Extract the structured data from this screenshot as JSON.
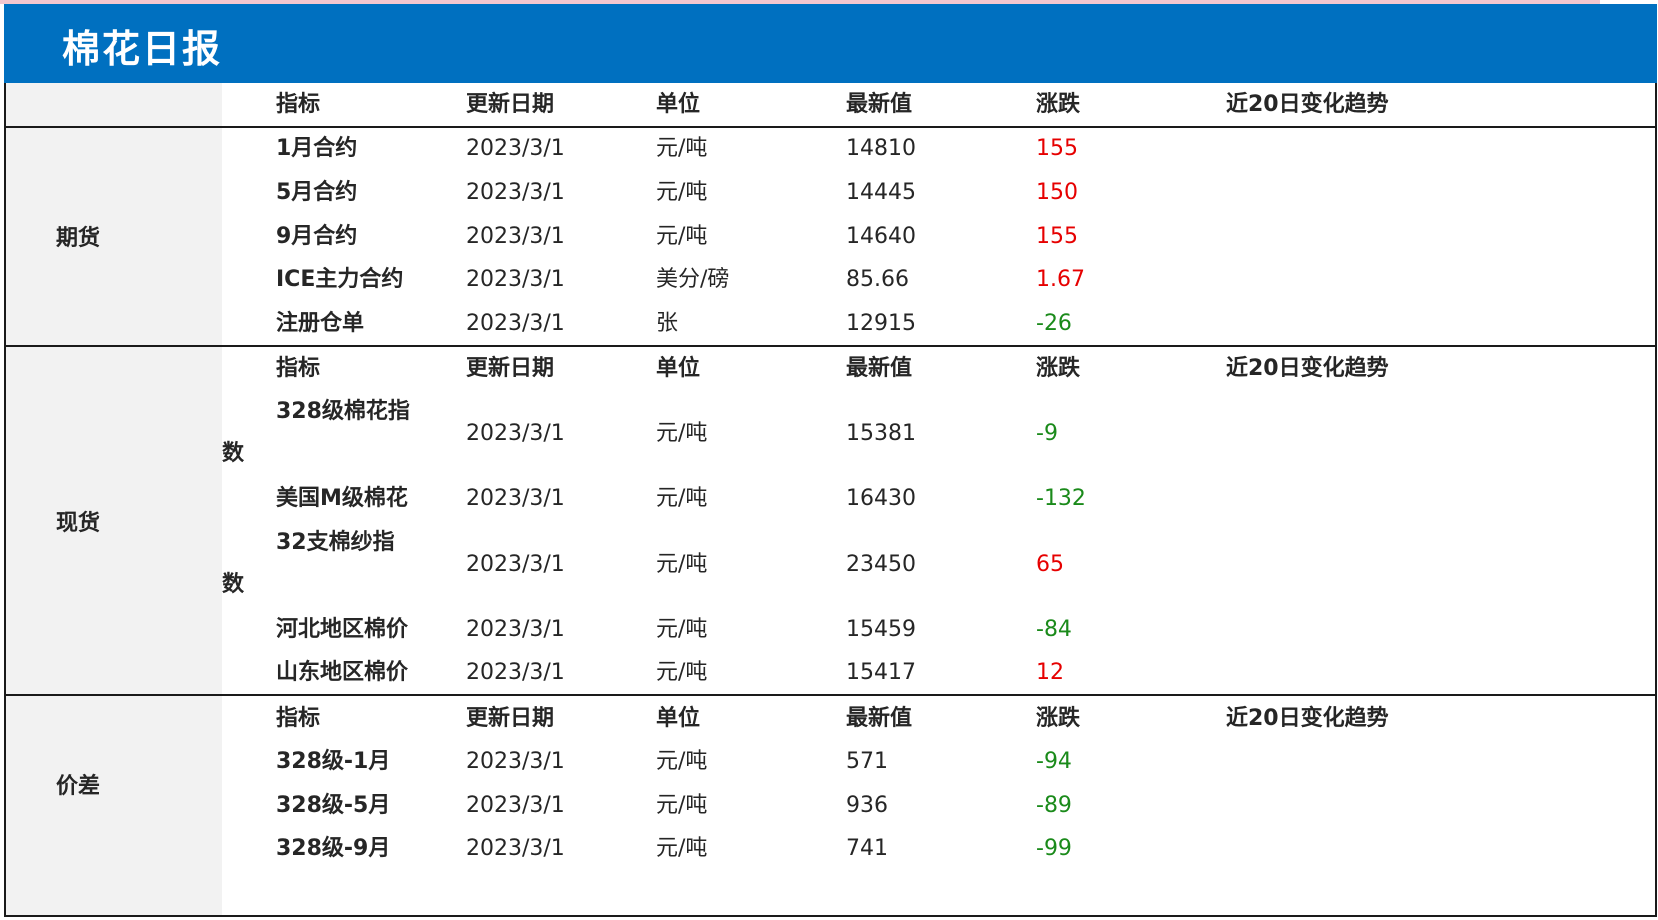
{
  "title": "棉花日报",
  "columns": [
    "指标",
    "更新日期",
    "单位",
    "最新值",
    "涨跌",
    "近20日变化趋势"
  ],
  "colors": {
    "header_bg": "#0070c0",
    "up": "#e60000",
    "down": "#1a8a1a",
    "category_bg": "#f2f2f2"
  },
  "sections": [
    {
      "category": "期货",
      "rows": [
        {
          "name": "1月合约",
          "date": "2023/3/1",
          "unit": "元/吨",
          "value": "14810",
          "change": "155"
        },
        {
          "name": "5月合约",
          "date": "2023/3/1",
          "unit": "元/吨",
          "value": "14445",
          "change": "150"
        },
        {
          "name": "9月合约",
          "date": "2023/3/1",
          "unit": "元/吨",
          "value": "14640",
          "change": "155"
        },
        {
          "name": "ICE主力合约",
          "date": "2023/3/1",
          "unit": "美分/磅",
          "value": "85.66",
          "change": "1.67"
        },
        {
          "name": "注册仓单",
          "date": "2023/3/1",
          "unit": "张",
          "value": "12915",
          "change": "-26"
        }
      ]
    },
    {
      "category": "现货",
      "rows": [
        {
          "name": "328级棉花指",
          "name_wrap": "数",
          "date": "2023/3/1",
          "unit": "元/吨",
          "value": "15381",
          "change": "-9"
        },
        {
          "name": "美国M级棉花",
          "date": "2023/3/1",
          "unit": "元/吨",
          "value": "16430",
          "change": "-132"
        },
        {
          "name": "32支棉纱指",
          "name_wrap": "数",
          "date": "2023/3/1",
          "unit": "元/吨",
          "value": "23450",
          "change": "65"
        },
        {
          "name": "河北地区棉价",
          "date": "2023/3/1",
          "unit": "元/吨",
          "value": "15459",
          "change": "-84"
        },
        {
          "name": "山东地区棉价",
          "date": "2023/3/1",
          "unit": "元/吨",
          "value": "15417",
          "change": "12"
        }
      ]
    },
    {
      "category": "价差",
      "rows": [
        {
          "name": "328级-1月",
          "date": "2023/3/1",
          "unit": "元/吨",
          "value": "571",
          "change": "-94"
        },
        {
          "name": "328级-5月",
          "date": "2023/3/1",
          "unit": "元/吨",
          "value": "936",
          "change": "-89"
        },
        {
          "name": "328级-9月",
          "date": "2023/3/1",
          "unit": "元/吨",
          "value": "741",
          "change": "-99"
        }
      ]
    }
  ]
}
